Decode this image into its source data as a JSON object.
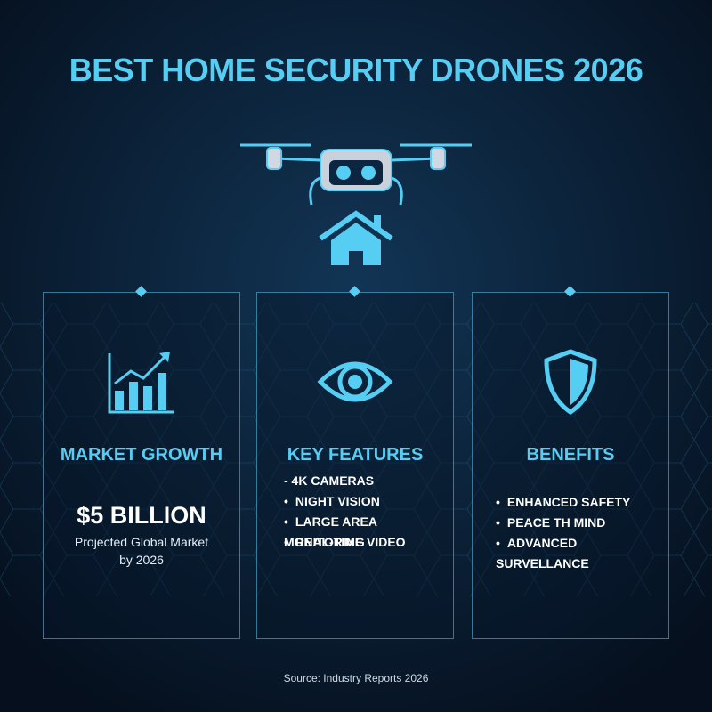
{
  "header": {
    "title": "BEST HOME SECURITY DRONES 2026"
  },
  "panels": [
    {
      "heading": "MARKET GROWTH",
      "figure": "$5 BILLION",
      "caption": [
        "Projected Global Market",
        "by 2026"
      ]
    },
    {
      "heading": "KEY FEATURES",
      "items": [
        "- 4K CAMERAS",
        "NIGHT VISION",
        "LARGE AREA MONITORING",
        "REAL-TIME VIDEO"
      ]
    },
    {
      "heading": "BENEFITS",
      "items": [
        "ENHANCED SAFETY",
        "PEACE TH MIND",
        "ADVANCED SURVELLANCE"
      ]
    }
  ],
  "footer": {
    "source": "Source: Industry Reports 2026"
  }
}
